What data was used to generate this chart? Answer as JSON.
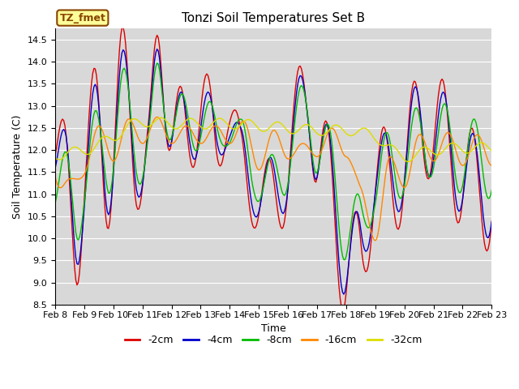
{
  "title": "Tonzi Soil Temperatures Set B",
  "xlabel": "Time",
  "ylabel": "Soil Temperature (C)",
  "ylim": [
    8.5,
    14.75
  ],
  "yticks": [
    8.5,
    9.0,
    9.5,
    10.0,
    10.5,
    11.0,
    11.5,
    12.0,
    12.5,
    13.0,
    13.5,
    14.0,
    14.5
  ],
  "bg_color": "#d8d8d8",
  "fig_bg": "#ffffff",
  "line_colors": {
    "-2cm": "#dd0000",
    "-4cm": "#0000cc",
    "-8cm": "#00bb00",
    "-16cm": "#ff8800",
    "-32cm": "#dddd00"
  },
  "legend_labels": [
    "-2cm",
    "-4cm",
    "-8cm",
    "-16cm",
    "-32cm"
  ],
  "annotation_text": "TZ_fmet",
  "annotation_bg": "#ffff99",
  "annotation_border": "#884400",
  "title_fontsize": 11,
  "axis_fontsize": 9,
  "tick_fontsize": 8,
  "legend_fontsize": 9
}
